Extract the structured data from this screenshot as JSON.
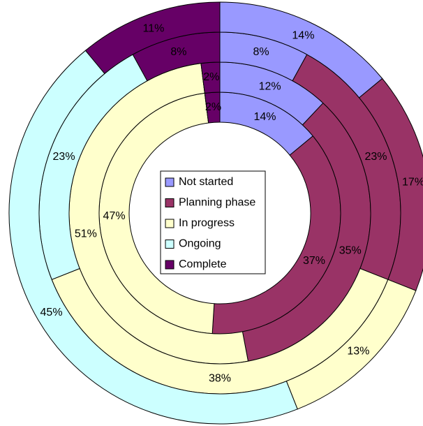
{
  "chart_data": {
    "type": "doughnut",
    "categories": [
      "Not started",
      "Planning phase",
      "In progress",
      "Ongoing",
      "Complete"
    ],
    "colors": [
      "#9999ff",
      "#993366",
      "#ffffcc",
      "#ccffff",
      "#660066"
    ],
    "series": [
      {
        "values": [
          14,
          37,
          47,
          0,
          2
        ],
        "value_labels": [
          "14%",
          "37%",
          "47%",
          null,
          "2%"
        ]
      },
      {
        "values": [
          12,
          35,
          51,
          0,
          2
        ],
        "value_labels": [
          "12%",
          "35%",
          "51%",
          null,
          "2%"
        ]
      },
      {
        "values": [
          8,
          23,
          38,
          23,
          8
        ],
        "value_labels": [
          "8%",
          "23%",
          "38%",
          "23%",
          "8%"
        ]
      },
      {
        "values": [
          14,
          17,
          13,
          45,
          11
        ],
        "value_labels": [
          "14%",
          "17%",
          "13%",
          "45%",
          "11%"
        ]
      }
    ],
    "legend": "center"
  }
}
